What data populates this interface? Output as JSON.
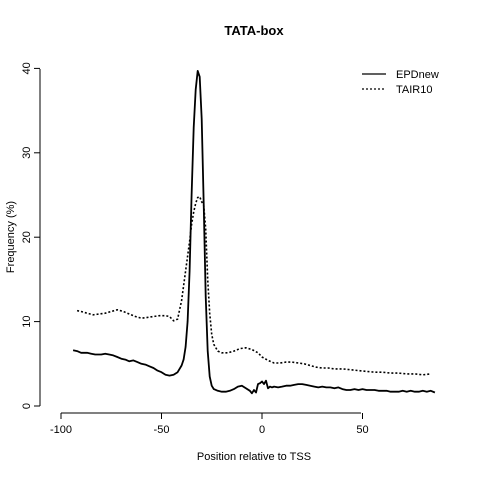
{
  "chart_data": {
    "type": "line",
    "title": "TATA-box",
    "xlabel": "Position relative to TSS",
    "ylabel": "Frequency (%)",
    "xlim": [
      -100,
      87
    ],
    "ylim": [
      0,
      40
    ],
    "x_ticks": [
      -100,
      -50,
      0,
      50
    ],
    "y_ticks": [
      0,
      10,
      20,
      30,
      40
    ],
    "grid": false,
    "legend_position": "top-right",
    "series": [
      {
        "name": "EPDnew",
        "style": "solid",
        "color": "#000000",
        "x": [
          -94,
          -92,
          -90,
          -87,
          -85,
          -83,
          -80,
          -78,
          -76,
          -74,
          -72,
          -70,
          -68,
          -66,
          -64,
          -62,
          -60,
          -58,
          -56,
          -54,
          -52,
          -50,
          -48,
          -46,
          -44,
          -42,
          -40,
          -39,
          -38,
          -37,
          -36,
          -35,
          -34,
          -33,
          -32,
          -31,
          -30,
          -29,
          -28,
          -27,
          -26,
          -25,
          -24,
          -22,
          -20,
          -18,
          -16,
          -14,
          -12,
          -10,
          -8,
          -6,
          -5,
          -4,
          -3,
          -2,
          -1,
          0,
          1,
          2,
          3,
          4,
          5,
          6,
          8,
          10,
          12,
          14,
          16,
          18,
          20,
          22,
          24,
          26,
          28,
          30,
          32,
          34,
          36,
          38,
          40,
          42,
          44,
          46,
          48,
          50,
          52,
          54,
          56,
          58,
          60,
          62,
          64,
          66,
          68,
          70,
          72,
          74,
          76,
          78,
          80,
          82,
          84,
          86
        ],
        "y": [
          6.6,
          6.5,
          6.3,
          6.3,
          6.2,
          6.1,
          6.1,
          6.2,
          6.1,
          6.0,
          5.8,
          5.6,
          5.5,
          5.3,
          5.4,
          5.2,
          5.0,
          4.9,
          4.7,
          4.5,
          4.2,
          4.0,
          3.7,
          3.6,
          3.7,
          4.0,
          4.8,
          5.5,
          7.0,
          10.0,
          16.0,
          25.0,
          33.0,
          37.5,
          39.7,
          39.0,
          34.0,
          24.0,
          13.0,
          6.5,
          3.5,
          2.4,
          2.0,
          1.8,
          1.7,
          1.7,
          1.8,
          2.0,
          2.3,
          2.4,
          2.1,
          1.8,
          1.5,
          1.9,
          1.6,
          2.6,
          2.7,
          2.9,
          2.6,
          3.0,
          2.1,
          2.3,
          2.2,
          2.3,
          2.2,
          2.3,
          2.4,
          2.4,
          2.5,
          2.6,
          2.6,
          2.5,
          2.4,
          2.3,
          2.2,
          2.3,
          2.2,
          2.2,
          2.1,
          2.2,
          2.0,
          1.9,
          1.9,
          2.0,
          1.9,
          2.0,
          1.9,
          1.9,
          1.9,
          1.8,
          1.8,
          1.8,
          1.7,
          1.7,
          1.7,
          1.8,
          1.7,
          1.8,
          1.7,
          1.7,
          1.8,
          1.7,
          1.8,
          1.6
        ]
      },
      {
        "name": "TAIR10",
        "style": "dotted",
        "color": "#000000",
        "x": [
          -92,
          -90,
          -87,
          -84,
          -81,
          -78,
          -75,
          -72,
          -69,
          -66,
          -63,
          -60,
          -57,
          -54,
          -51,
          -48,
          -46,
          -44,
          -42,
          -40,
          -38,
          -36,
          -35,
          -34,
          -33,
          -32,
          -31,
          -30,
          -29,
          -28,
          -27,
          -26,
          -25,
          -24,
          -22,
          -20,
          -17,
          -14,
          -11,
          -8,
          -5,
          -2,
          0,
          3,
          6,
          9,
          12,
          15,
          18,
          21,
          24,
          27,
          30,
          33,
          36,
          40,
          44,
          48,
          52,
          56,
          60,
          64,
          68,
          72,
          76,
          80,
          84
        ],
        "y": [
          11.3,
          11.2,
          11.0,
          10.8,
          10.9,
          11.0,
          11.2,
          11.4,
          11.2,
          10.9,
          10.6,
          10.4,
          10.5,
          10.6,
          10.7,
          10.7,
          10.6,
          10.1,
          10.3,
          12.5,
          16.0,
          19.5,
          21.5,
          23.0,
          24.0,
          24.7,
          24.8,
          24.2,
          23.8,
          21.0,
          15.0,
          11.0,
          8.5,
          7.3,
          6.5,
          6.3,
          6.3,
          6.5,
          6.8,
          6.9,
          6.7,
          6.3,
          5.8,
          5.4,
          5.1,
          5.1,
          5.2,
          5.2,
          5.1,
          5.0,
          4.8,
          4.6,
          4.5,
          4.5,
          4.4,
          4.4,
          4.3,
          4.2,
          4.1,
          4.0,
          4.0,
          3.9,
          3.9,
          3.8,
          3.8,
          3.7,
          3.8
        ]
      }
    ]
  }
}
